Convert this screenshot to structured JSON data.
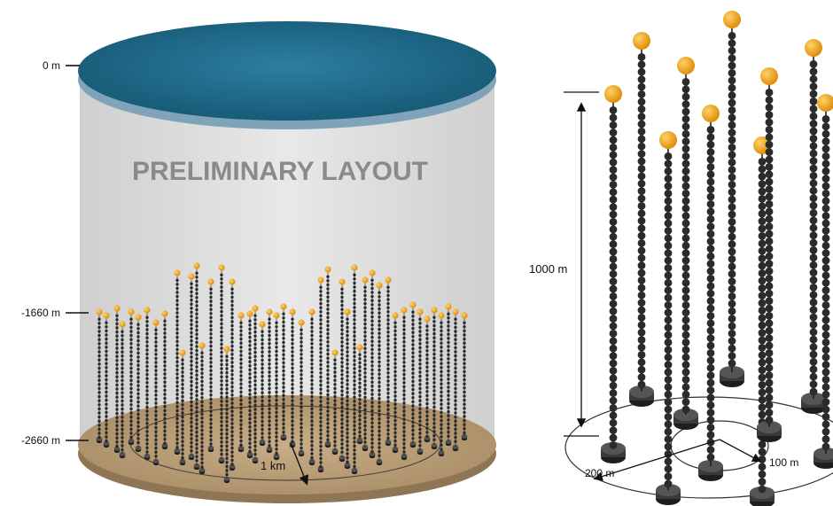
{
  "left_panel": {
    "title": "PRELIMINARY LAYOUT",
    "depth_labels": [
      "0 m",
      "-1660 m",
      "-2660 m"
    ],
    "radius_label": "1 km"
  },
  "right_panel": {
    "height_label": "1000 m",
    "outer_radius_label": "200 m",
    "inner_radius_label": "100 m"
  },
  "colors": {
    "sea": "#1f6a8a",
    "sea_edge": "#7fa3b8",
    "cylinder": "#dcdcdc",
    "seabed": "#b99f7a",
    "buoy": "#f2a21a",
    "module": "#2b2b2b",
    "title": "#8a8a8a"
  }
}
